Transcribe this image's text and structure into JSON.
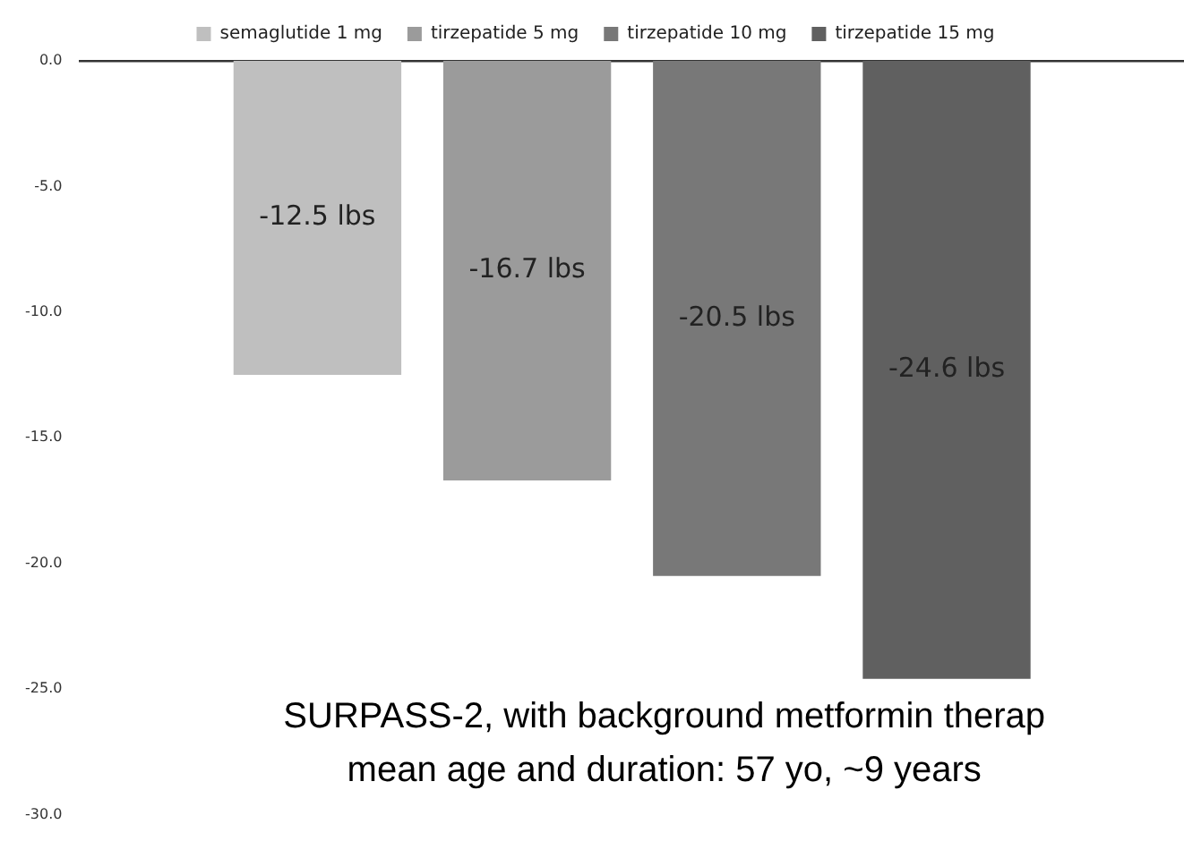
{
  "chart_data": {
    "type": "bar",
    "categories": [
      null
    ],
    "series": [
      {
        "name": "semaglutide 1 mg",
        "color": "#bfbfbf",
        "values": [
          -12.5
        ],
        "value_labels": [
          "-12.5 lbs"
        ]
      },
      {
        "name": "tirzepatide 5 mg",
        "color": "#9b9b9b",
        "values": [
          -16.7
        ],
        "value_labels": [
          "-16.7 lbs"
        ]
      },
      {
        "name": "tirzepatide 10 mg",
        "color": "#787878",
        "values": [
          -20.5
        ],
        "value_labels": [
          "-20.5 lbs"
        ]
      },
      {
        "name": "tirzepatide 15 mg",
        "color": "#606060",
        "values": [
          -24.6
        ],
        "value_labels": [
          "-24.6 lbs"
        ]
      }
    ],
    "ylim": [
      -30,
      0
    ],
    "yticks": [
      {
        "value": 0,
        "label": "0.0"
      },
      {
        "value": -5,
        "label": "-5.0"
      },
      {
        "value": -10,
        "label": "-10.0"
      },
      {
        "value": -15,
        "label": "-15.0"
      },
      {
        "value": -20,
        "label": "-20.0"
      },
      {
        "value": -25,
        "label": "-25.0"
      },
      {
        "value": -30,
        "label": "-30.0"
      }
    ],
    "grid": false,
    "legend": "top",
    "annotations": [
      "SURPASS-2, with background metformin therap",
      "mean age and duration: 57 yo, ~9 years"
    ]
  }
}
